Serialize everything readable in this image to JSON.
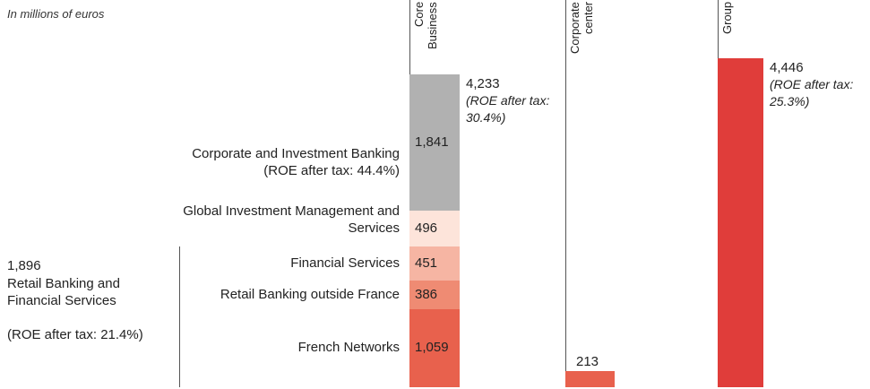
{
  "chart_data": {
    "type": "stacked_bar",
    "note": "In millions  of euros",
    "columns": [
      {
        "label": "Core Business",
        "total": 4233,
        "total_label": "4,233",
        "total_note": "(ROE after tax: 30.4%)",
        "segments": [
          {
            "name": "French Networks",
            "value": 1059,
            "value_label": "1,059",
            "color": "#e8614d"
          },
          {
            "name": "Retail Banking outside France",
            "value": 386,
            "color": "#ef8b73"
          },
          {
            "name": "Financial Services",
            "value": 451,
            "color": "#f6b5a3"
          },
          {
            "name": "Global Investment Management and Services",
            "value": 496,
            "color": "#fde4da"
          },
          {
            "name": "Corporate and Investment Banking",
            "note": "(ROE after tax: 44.4%)",
            "value": 1841,
            "value_label": "1,841",
            "color": "#b1b1b1"
          }
        ]
      },
      {
        "label": "Corporate center",
        "total": 213,
        "color": "#e8614d"
      },
      {
        "label": "Group",
        "total": 4446,
        "total_label": "4,446",
        "total_note": "(ROE after tax: 25.3%)",
        "color": "#e03d3a"
      }
    ],
    "bracket": {
      "value": 1896,
      "value_label": "1,896",
      "name": "Retail Banking and Financial Services",
      "note": "(ROE after tax: 21.4%)",
      "segments": [
        0,
        1,
        2
      ]
    }
  }
}
